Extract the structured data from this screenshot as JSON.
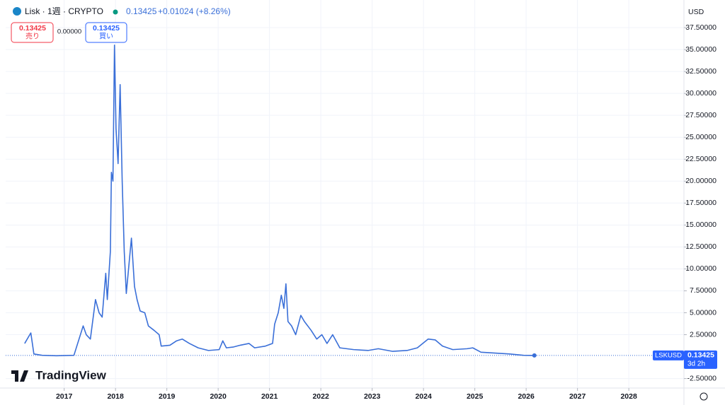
{
  "toolbar": {
    "symbol_title": "Lisk · 1週 · CRYPTO",
    "last_price": "0.13425",
    "change": "+0.01024 (+8.26%)",
    "sell_price": "0.13425",
    "sell_label": "売り",
    "spread": "0.00000",
    "buy_price": "0.13425",
    "buy_label": "買い",
    "currency": "USD",
    "price_label_symbol": "LSKUSD",
    "price_label_value": "0.13425",
    "countdown": "3d 2h",
    "logo": "TradingView"
  },
  "chart_data": {
    "type": "line",
    "color": "#3a6fd8",
    "grid": true,
    "x": [
      2016.23,
      2016.35,
      2016.41,
      2016.57,
      2016.85,
      2017.19,
      2017.37,
      2017.43,
      2017.51,
      2017.61,
      2017.68,
      2017.74,
      2017.81,
      2017.84,
      2017.9,
      2017.92,
      2017.95,
      2017.98,
      2018.01,
      2018.05,
      2018.09,
      2018.13,
      2018.17,
      2018.21,
      2018.27,
      2018.31,
      2018.37,
      2018.42,
      2018.48,
      2018.57,
      2018.64,
      2018.75,
      2018.85,
      2018.89,
      2019.06,
      2019.19,
      2019.3,
      2019.44,
      2019.61,
      2019.81,
      2020.02,
      2020.09,
      2020.16,
      2020.3,
      2020.43,
      2020.6,
      2020.71,
      2020.92,
      2021.06,
      2021.1,
      2021.17,
      2021.23,
      2021.28,
      2021.32,
      2021.36,
      2021.43,
      2021.51,
      2021.61,
      2021.68,
      2021.81,
      2021.92,
      2022.02,
      2022.12,
      2022.23,
      2022.37,
      2022.64,
      2022.92,
      2023.12,
      2023.4,
      2023.68,
      2023.88,
      2024.09,
      2024.23,
      2024.37,
      2024.57,
      2024.85,
      2024.96,
      2025.12,
      2025.4,
      2025.68,
      2025.95,
      2026.16
    ],
    "values": [
      1.5,
      2.7,
      0.3,
      0.15,
      0.1,
      0.15,
      3.5,
      2.5,
      2.0,
      6.5,
      5,
      4.5,
      9.5,
      6.5,
      12,
      21,
      20,
      35.5,
      26,
      22,
      31,
      20,
      12,
      7.2,
      11,
      13.5,
      8,
      6.5,
      5.2,
      5,
      3.5,
      3,
      2.5,
      1.2,
      1.3,
      1.8,
      2,
      1.5,
      1,
      0.7,
      0.8,
      1.8,
      1,
      1.1,
      1.3,
      1.5,
      1,
      1.2,
      1.5,
      3.7,
      5,
      7,
      5.5,
      8.3,
      4,
      3.5,
      2.5,
      4.7,
      4,
      3,
      2,
      2.5,
      1.5,
      2.5,
      1,
      0.8,
      0.7,
      0.9,
      0.6,
      0.7,
      1,
      2,
      1.9,
      1.2,
      0.8,
      0.9,
      1,
      0.5,
      0.4,
      0.3,
      0.15,
      0.13425
    ],
    "xlim": [
      2015.86,
      2029.06
    ],
    "ylim": [
      -3.5,
      40
    ],
    "xticks": [
      2017,
      2018,
      2019,
      2020,
      2021,
      2022,
      2023,
      2024,
      2025,
      2026,
      2027,
      2028
    ],
    "yticks": [
      {
        "value": 37.5,
        "label": "37.50000"
      },
      {
        "value": 35,
        "label": "35.00000"
      },
      {
        "value": 32.5,
        "label": "32.50000"
      },
      {
        "value": 30,
        "label": "30.00000"
      },
      {
        "value": 27.5,
        "label": "27.50000"
      },
      {
        "value": 25,
        "label": "25.00000"
      },
      {
        "value": 22.5,
        "label": "22.50000"
      },
      {
        "value": 20,
        "label": "20.00000"
      },
      {
        "value": 17.5,
        "label": "17.50000"
      },
      {
        "value": 15,
        "label": "15.00000"
      },
      {
        "value": 12.5,
        "label": "12.50000"
      },
      {
        "value": 10,
        "label": "10.00000"
      },
      {
        "value": 7.5,
        "label": "7.50000"
      },
      {
        "value": 5,
        "label": "5.00000"
      },
      {
        "value": 2.5,
        "label": "2.50000"
      },
      {
        "value": -2.5,
        "label": "-2.50000"
      }
    ]
  }
}
